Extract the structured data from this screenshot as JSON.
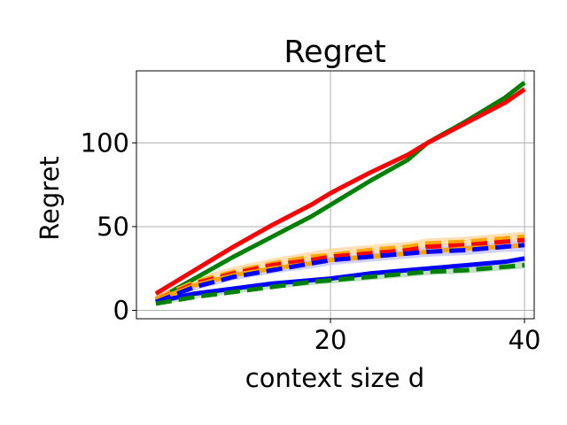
{
  "chart_data": {
    "type": "line",
    "title": "Regret",
    "xlabel": "context size d",
    "ylabel": "Regret",
    "xlim": [
      0,
      41
    ],
    "ylim": [
      -5,
      143
    ],
    "xticks": [
      20,
      40
    ],
    "yticks": [
      0,
      50,
      100
    ],
    "grid": true,
    "x": [
      2,
      6,
      10,
      14,
      18,
      20,
      24,
      28,
      30,
      34,
      38,
      40
    ],
    "series": [
      {
        "color": "#008000",
        "style": "solid",
        "values": [
          6,
          19,
          32,
          44,
          56,
          63,
          77,
          90,
          100,
          113,
          127,
          136
        ]
      },
      {
        "color": "#ff0000",
        "style": "solid",
        "values": [
          10,
          24,
          38,
          51,
          63,
          70,
          82,
          93,
          100,
          112,
          124,
          132
        ]
      },
      {
        "color": "#ffa500",
        "style": "dashed",
        "band_color": "#ffd9a6",
        "values": [
          7,
          17,
          23,
          28,
          32,
          33,
          36,
          38,
          40,
          41,
          43,
          44
        ],
        "lower": [
          5,
          14,
          20,
          25,
          28,
          30,
          33,
          35,
          37,
          38,
          40,
          41
        ],
        "upper": [
          9,
          20,
          26,
          31,
          35,
          37,
          39,
          41,
          43,
          44,
          46,
          47
        ]
      },
      {
        "color": "#ff0000",
        "style": "dashed",
        "values": [
          6,
          16,
          22,
          27,
          30,
          32,
          34,
          36,
          38,
          39,
          41,
          42
        ]
      },
      {
        "color": "#ffa500",
        "style": "solid",
        "values": [
          6,
          15,
          21,
          25,
          28,
          30,
          32,
          34,
          35,
          37,
          38,
          39
        ]
      },
      {
        "color": "#0000ff",
        "style": "dashed",
        "band_color": "#c8c8ff",
        "values": [
          5,
          14,
          20,
          24,
          28,
          30,
          32,
          34,
          35,
          36,
          38,
          39
        ],
        "lower": [
          4,
          12,
          18,
          22,
          25,
          27,
          29,
          31,
          32,
          33,
          35,
          35
        ],
        "upper": [
          6,
          16,
          22,
          26,
          30,
          32,
          34,
          36,
          38,
          39,
          41,
          42
        ]
      },
      {
        "color": "#0000ff",
        "style": "solid",
        "values": [
          5,
          10,
          13,
          16,
          18,
          19,
          22,
          24,
          25,
          27,
          29,
          31
        ]
      },
      {
        "color": "#008000",
        "style": "dashed",
        "band_color": "#b6d9b6",
        "values": [
          4,
          8,
          11,
          14,
          17,
          18,
          20,
          22,
          23,
          24,
          26,
          27
        ],
        "lower": [
          3,
          7,
          10,
          13,
          15,
          16,
          18,
          20,
          21,
          22,
          24,
          25
        ],
        "upper": [
          5,
          9,
          12,
          15,
          18,
          19,
          21,
          23,
          25,
          26,
          28,
          30
        ]
      }
    ]
  }
}
